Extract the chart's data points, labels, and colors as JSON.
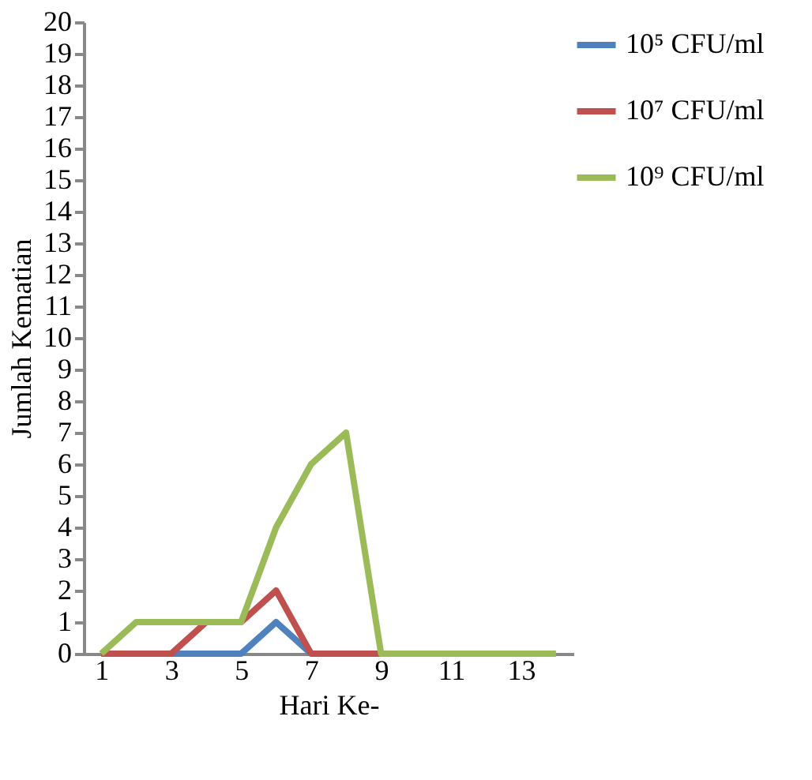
{
  "chart_data": {
    "type": "line",
    "xlabel": "Hari Ke-",
    "ylabel": "Jumlah Kematian",
    "x": [
      1,
      2,
      3,
      4,
      5,
      6,
      7,
      8,
      9,
      10,
      11,
      12,
      13,
      14
    ],
    "series": [
      {
        "name": "10⁵ CFU/ml",
        "color": "#4f81bd",
        "values": [
          null,
          null,
          0,
          0,
          0,
          1,
          0,
          null,
          null,
          null,
          null,
          null,
          null,
          null
        ]
      },
      {
        "name": "10⁷  CFU/ml",
        "color": "#c0504d",
        "values": [
          0,
          0,
          0,
          1,
          1,
          2,
          0,
          0,
          0,
          0,
          null,
          null,
          null,
          null
        ]
      },
      {
        "name": "10⁹ CFU/ml",
        "color": "#9bbb59",
        "values": [
          0,
          1,
          1,
          1,
          1,
          4,
          6,
          7,
          0,
          0,
          0,
          0,
          0,
          0
        ]
      }
    ],
    "xlim": [
      0.5,
      14.5
    ],
    "xticks": [
      1,
      3,
      5,
      7,
      9,
      11,
      13
    ],
    "ylim": [
      0,
      20
    ],
    "yticks": [
      0,
      1,
      2,
      3,
      4,
      5,
      6,
      7,
      8,
      9,
      10,
      11,
      12,
      13,
      14,
      15,
      16,
      17,
      18,
      19,
      20
    ],
    "grid": false,
    "legend": "right",
    "marker": "none",
    "line_style": "solid"
  }
}
